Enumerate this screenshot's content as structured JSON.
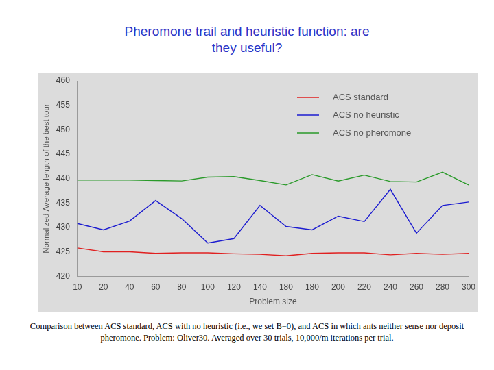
{
  "chart_data": {
    "type": "line",
    "title": "Pheromone trail and heuristic function: are they useful?",
    "caption": "Comparison between ACS standard, ACS with no heuristic (i.e., we set B=0), and ACS in which ants neither sense nor deposit pheromone. Problem: Oliver30. Averaged over 30 trials, 10,000/m iterations per trial.",
    "x_label": "Problem size",
    "y_label": "Normalized Average length of the best tour",
    "categories": [
      "10",
      "20",
      "40",
      "60",
      "80",
      "100",
      "120",
      "140",
      "180",
      "180",
      "200",
      "220",
      "240",
      "260",
      "280",
      "300"
    ],
    "series": [
      {
        "name": "ACS standard",
        "color": "#e02020",
        "values": [
          425.8,
          425,
          425,
          424.7,
          424.8,
          424.8,
          424.6,
          424.5,
          424.2,
          424.7,
          424.8,
          424.8,
          424.4,
          424.7,
          424.5,
          424.7
        ]
      },
      {
        "name": "ACS no heuristic",
        "color": "#1c1cd0",
        "values": [
          430.8,
          429.5,
          431.3,
          435.5,
          431.8,
          426.8,
          427.7,
          434.5,
          430.2,
          429.5,
          432.3,
          431.2,
          437.8,
          428.8,
          434.5,
          435.2
        ]
      },
      {
        "name": "ACS no pheromone",
        "color": "#2a9a2a",
        "values": [
          439.7,
          439.7,
          439.7,
          439.6,
          439.5,
          440.3,
          440.4,
          439.6,
          438.7,
          440.8,
          439.5,
          440.7,
          439.4,
          439.3,
          441.3,
          438.7
        ]
      }
    ],
    "ylim": [
      420,
      460
    ],
    "yticks": [
      420,
      425,
      430,
      435,
      440,
      445,
      450,
      455,
      460
    ],
    "grid": false,
    "legend": "upper right"
  }
}
